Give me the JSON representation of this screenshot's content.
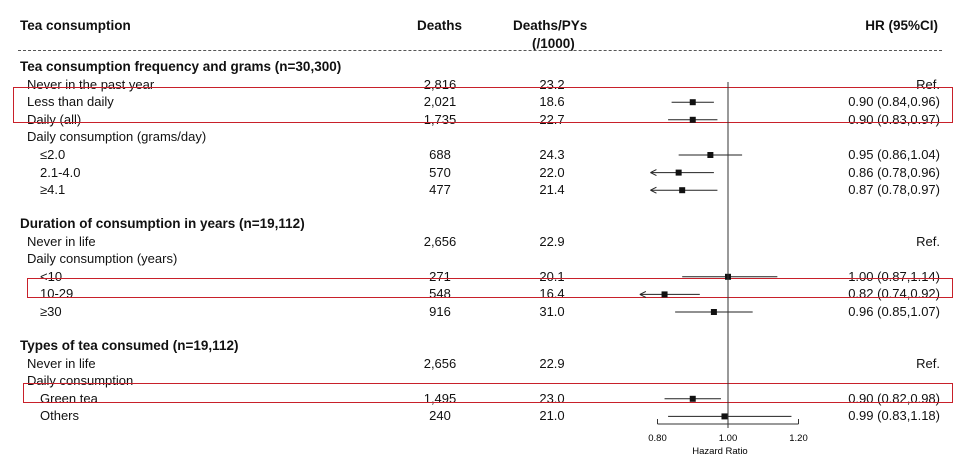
{
  "headers": {
    "label": "Tea consumption",
    "deaths": "Deaths",
    "rate_line1": "Deaths/PYs",
    "rate_line2": "(/1000)",
    "hr": "HR (95%CI)"
  },
  "axis": {
    "tick_labels": [
      "0.80",
      "1.00",
      "1.20"
    ],
    "title": "Hazard Ratio"
  },
  "chart_data": {
    "type": "forest",
    "xlabel": "Hazard Ratio",
    "xlim": [
      0.8,
      1.2
    ],
    "xticks": [
      0.8,
      1.0,
      1.2
    ],
    "reference_line": 1.0,
    "sections": [
      {
        "title": "Tea consumption frequency and grams (n=30,300)",
        "rows": [
          {
            "label": "Never in the past year",
            "deaths": "2,816",
            "rate": "23.2",
            "hr_text": "Ref.",
            "hr": null
          },
          {
            "label": "Less than daily",
            "deaths": "2,021",
            "rate": "18.6",
            "hr_text": "0.90 (0.84,0.96)",
            "hr": 0.9,
            "lo": 0.84,
            "hi": 0.96,
            "highlight": true
          },
          {
            "label": "Daily (all)",
            "deaths": "1,735",
            "rate": "22.7",
            "hr_text": "0.90 (0.83,0.97)",
            "hr": 0.9,
            "lo": 0.83,
            "hi": 0.97,
            "highlight": true
          },
          {
            "label": "Daily consumption (grams/day)",
            "subheader": true
          },
          {
            "label": "≤2.0",
            "deaths": "688",
            "rate": "24.3",
            "hr_text": "0.95 (0.86,1.04)",
            "hr": 0.95,
            "lo": 0.86,
            "hi": 1.04
          },
          {
            "label": "2.1-4.0",
            "deaths": "570",
            "rate": "22.0",
            "hr_text": "0.86 (0.78,0.96)",
            "hr": 0.86,
            "lo": 0.78,
            "hi": 0.96
          },
          {
            "label": "≥4.1",
            "deaths": "477",
            "rate": "21.4",
            "hr_text": "0.87 (0.78,0.97)",
            "hr": 0.87,
            "lo": 0.78,
            "hi": 0.97
          }
        ]
      },
      {
        "title": "Duration of consumption in years (n=19,112)",
        "rows": [
          {
            "label": "Never in life",
            "deaths": "2,656",
            "rate": "22.9",
            "hr_text": "Ref.",
            "hr": null
          },
          {
            "label": "Daily consumption (years)",
            "subheader": true
          },
          {
            "label": "<10",
            "deaths": "271",
            "rate": "20.1",
            "hr_text": "1.00 (0.87,1.14)",
            "hr": 1.0,
            "lo": 0.87,
            "hi": 1.14
          },
          {
            "label": "10-29",
            "deaths": "548",
            "rate": "16.4",
            "hr_text": "0.82 (0.74,0.92)",
            "hr": 0.82,
            "lo": 0.74,
            "hi": 0.92,
            "highlight": true
          },
          {
            "label": "≥30",
            "deaths": "916",
            "rate": "31.0",
            "hr_text": "0.96 (0.85,1.07)",
            "hr": 0.96,
            "lo": 0.85,
            "hi": 1.07
          }
        ]
      },
      {
        "title": "Types of tea consumed (n=19,112)",
        "rows": [
          {
            "label": "Never in life",
            "deaths": "2,656",
            "rate": "22.9",
            "hr_text": "Ref.",
            "hr": null
          },
          {
            "label": "Daily consumption",
            "subheader": true
          },
          {
            "label": "Green tea",
            "deaths": "1,495",
            "rate": "23.0",
            "hr_text": "0.90 (0.82,0.98)",
            "hr": 0.9,
            "lo": 0.82,
            "hi": 0.98,
            "highlight": true
          },
          {
            "label": "Others",
            "deaths": "240",
            "rate": "21.0",
            "hr_text": "0.99 (0.83,1.18)",
            "hr": 0.99,
            "lo": 0.83,
            "hi": 1.18
          }
        ]
      }
    ]
  }
}
